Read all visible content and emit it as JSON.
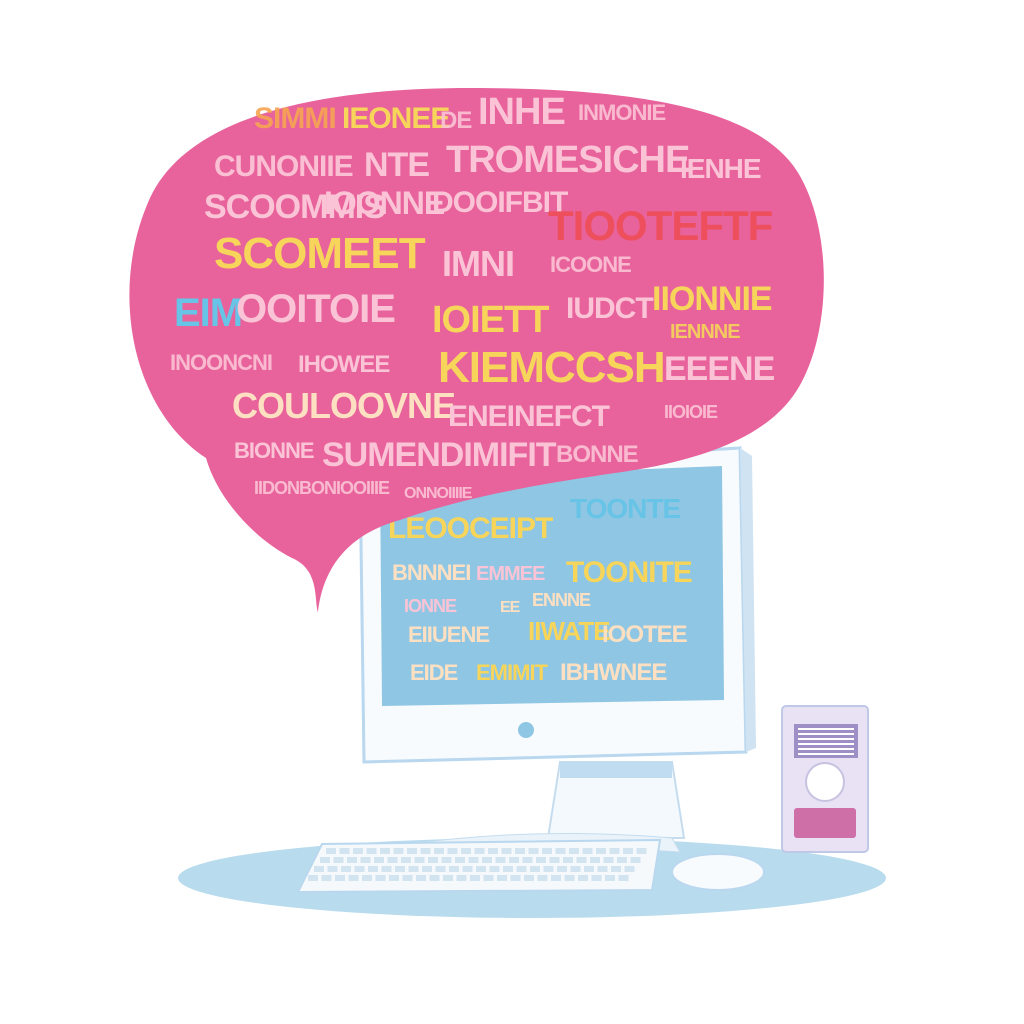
{
  "colors": {
    "bubble_fill": "#e8629c",
    "screen_fill": "#8fc6e3",
    "monitor_bezel": "#f7fbfe",
    "monitor_outline": "#b9d7ee",
    "desk_oval": "#b8dbee",
    "speaker_purple": "#cf6fa8",
    "word_yellow": "#f6d55a",
    "word_orange": "#f6a552",
    "word_pink": "#fbc4d6",
    "word_red": "#ee4f5c",
    "word_cyan": "#67c4e6",
    "word_cream": "#fde0c2"
  },
  "bubble_words": [
    "SIMMI",
    "IEONEE",
    "DE",
    "INHE",
    "INMONIE",
    "CUNONIIE",
    "NTE",
    "TROMESICHE",
    "IENHE",
    "SCOOMMIS",
    "IOONNE",
    "DOOIFBIT",
    "TIOOTEFTF",
    "SCOMEET",
    "IMNI",
    "ICOONE",
    "EIM",
    "OOITOIE",
    "IOIETT",
    "IUDCT",
    "IIONNIE",
    "IENNNE",
    "INOONCNI",
    "IHOWEE",
    "KIEMCCSH",
    "EEENE",
    "COULOOVNE",
    "ENEINEFCT",
    "IIOIOIE",
    "BIONNE",
    "SUMENDIMIFIT",
    "BONNE",
    "IIDONBONIOOIIIE",
    "ONNOIIIIE"
  ],
  "screen_words": [
    "LEOOCEIPT",
    "TOONTE",
    "BNNNEI",
    "EMMEE",
    "TOONITE",
    "IONNE",
    "EE",
    "ENNNE",
    "EIIUENE",
    "IIWATE",
    "IOOTEE",
    "EIDE",
    "EMIMIT",
    "IBHWNEE"
  ],
  "icons": {
    "speech_bubble": "speech-bubble-icon",
    "monitor": "computer-monitor-icon",
    "keyboard": "keyboard-icon",
    "mouse": "mouse-icon",
    "speaker": "speaker-icon"
  }
}
